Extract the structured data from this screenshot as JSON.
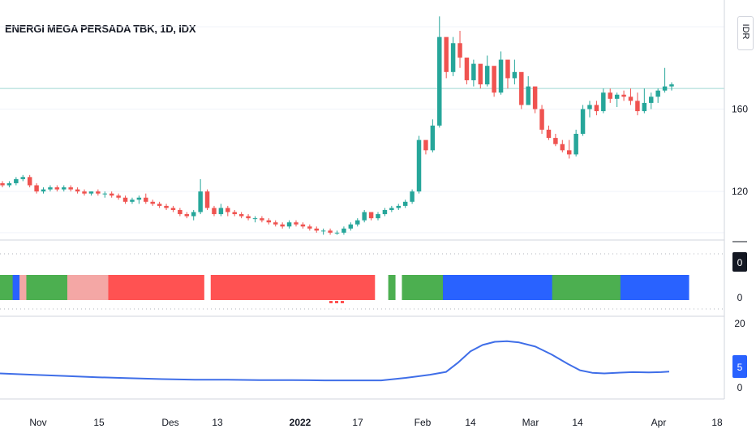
{
  "title": "ENERGI MEGA PERSADA TBK, 1D, IDX",
  "currency": "IDR",
  "colors": {
    "up": "#26a69a",
    "down": "#ef5350",
    "green_band": "#4caf50",
    "blue_band": "#2962ff",
    "red_band": "#ff5252",
    "pink_band": "#f4a7a5",
    "line": "#3f6ee8",
    "hline": "#b2dfdb"
  },
  "chart_data": [
    {
      "type": "candlestick",
      "title": "ENERGI MEGA PERSADA TBK, 1D, IDX",
      "y_ticks": [
        120,
        160
      ],
      "ylim": [
        98,
        211
      ],
      "horizontal_line": 170,
      "candles_ohlc": [
        [
          124,
          125,
          122,
          123
        ],
        [
          123,
          125,
          122,
          124
        ],
        [
          124,
          127,
          123,
          126
        ],
        [
          126,
          128,
          125,
          127
        ],
        [
          127,
          128,
          122,
          123
        ],
        [
          123,
          124,
          119,
          120
        ],
        [
          120,
          122,
          119,
          121
        ],
        [
          121,
          123,
          120,
          122
        ],
        [
          122,
          123,
          120,
          121
        ],
        [
          121,
          123,
          120,
          122
        ],
        [
          122,
          123,
          120,
          121
        ],
        [
          121,
          122,
          119,
          120
        ],
        [
          120,
          121,
          118,
          119
        ],
        [
          119,
          120,
          118,
          120
        ],
        [
          120,
          121,
          118,
          119
        ],
        [
          119,
          120,
          117,
          119
        ],
        [
          119,
          120,
          117,
          118
        ],
        [
          118,
          119,
          116,
          117
        ],
        [
          117,
          118,
          114,
          115
        ],
        [
          115,
          117,
          114,
          116
        ],
        [
          116,
          118,
          114,
          117
        ],
        [
          117,
          119,
          114,
          115
        ],
        [
          115,
          116,
          113,
          114
        ],
        [
          114,
          115,
          112,
          113
        ],
        [
          113,
          114,
          111,
          112
        ],
        [
          112,
          113,
          110,
          111
        ],
        [
          111,
          112,
          108,
          109
        ],
        [
          109,
          110,
          107,
          108
        ],
        [
          108,
          111,
          106,
          110
        ],
        [
          110,
          126,
          109,
          120
        ],
        [
          120,
          121,
          111,
          112
        ],
        [
          112,
          113,
          108,
          109
        ],
        [
          109,
          114,
          108,
          112
        ],
        [
          112,
          113,
          108,
          110
        ],
        [
          110,
          111,
          108,
          109
        ],
        [
          109,
          110,
          107,
          108
        ],
        [
          108,
          109,
          106,
          107
        ],
        [
          107,
          108,
          105,
          107
        ],
        [
          107,
          108,
          105,
          106
        ],
        [
          106,
          107,
          104,
          105
        ],
        [
          105,
          106,
          103,
          104
        ],
        [
          104,
          105,
          102,
          103
        ],
        [
          103,
          106,
          102,
          105
        ],
        [
          105,
          106,
          103,
          104
        ],
        [
          104,
          105,
          102,
          103
        ],
        [
          103,
          104,
          101,
          102
        ],
        [
          102,
          103,
          100,
          101
        ],
        [
          101,
          102,
          99,
          101
        ],
        [
          101,
          102,
          99,
          100
        ],
        [
          100,
          101,
          99,
          100
        ],
        [
          100,
          103,
          99,
          102
        ],
        [
          102,
          105,
          101,
          104
        ],
        [
          104,
          107,
          103,
          106
        ],
        [
          106,
          111,
          105,
          110
        ],
        [
          110,
          109,
          106,
          107
        ],
        [
          107,
          110,
          106,
          109
        ],
        [
          109,
          112,
          108,
          111
        ],
        [
          111,
          113,
          110,
          112
        ],
        [
          112,
          114,
          111,
          113
        ],
        [
          113,
          116,
          112,
          115
        ],
        [
          115,
          121,
          114,
          120
        ],
        [
          120,
          147,
          119,
          145
        ],
        [
          145,
          142,
          138,
          140
        ],
        [
          140,
          155,
          139,
          152
        ],
        [
          152,
          205,
          151,
          195
        ],
        [
          195,
          190,
          175,
          178
        ],
        [
          178,
          195,
          176,
          192
        ],
        [
          192,
          198,
          180,
          185
        ],
        [
          185,
          180,
          172,
          174
        ],
        [
          174,
          184,
          171,
          182
        ],
        [
          182,
          180,
          170,
          172
        ],
        [
          172,
          186,
          171,
          181
        ],
        [
          181,
          179,
          166,
          168
        ],
        [
          168,
          188,
          167,
          184
        ],
        [
          184,
          178,
          170,
          175
        ],
        [
          175,
          184,
          172,
          178
        ],
        [
          178,
          171,
          160,
          162
        ],
        [
          162,
          176,
          162,
          171
        ],
        [
          171,
          168,
          158,
          160
        ],
        [
          160,
          162,
          148,
          150
        ],
        [
          150,
          152,
          145,
          146
        ],
        [
          146,
          148,
          142,
          143
        ],
        [
          143,
          145,
          139,
          140
        ],
        [
          140,
          145,
          136,
          138
        ],
        [
          138,
          150,
          137,
          148
        ],
        [
          148,
          162,
          147,
          160
        ],
        [
          160,
          164,
          156,
          162
        ],
        [
          162,
          164,
          157,
          159
        ],
        [
          159,
          170,
          158,
          168
        ],
        [
          168,
          170,
          163,
          165
        ],
        [
          165,
          168,
          161,
          167
        ],
        [
          167,
          169,
          164,
          166
        ],
        [
          166,
          170,
          162,
          164
        ],
        [
          164,
          168,
          157,
          159
        ],
        [
          159,
          170,
          158,
          163
        ],
        [
          163,
          168,
          160,
          166
        ],
        [
          166,
          170,
          163,
          169
        ],
        [
          169,
          180,
          168,
          171
        ],
        [
          171,
          173,
          169,
          172
        ]
      ]
    },
    {
      "type": "heatmap",
      "y_ticks": [
        "0",
        "0"
      ],
      "segments": [
        {
          "color": "green",
          "count": 2
        },
        {
          "color": "blue",
          "count": 1
        },
        {
          "color": "pink",
          "count": 1
        },
        {
          "color": "green",
          "count": 6
        },
        {
          "color": "pink",
          "count": 6
        },
        {
          "color": "red",
          "count": 14
        },
        {
          "color": "none",
          "count": 1
        },
        {
          "color": "red",
          "count": 24
        },
        {
          "color": "none",
          "count": 2
        },
        {
          "color": "green",
          "count": 1
        },
        {
          "color": "none",
          "count": 1
        },
        {
          "color": "green",
          "count": 6
        },
        {
          "color": "blue",
          "count": 16
        },
        {
          "color": "green",
          "count": 10
        },
        {
          "color": "blue",
          "count": 10
        }
      ]
    },
    {
      "type": "line",
      "y_ticks": [
        "20",
        "0"
      ],
      "ylim": [
        0,
        20
      ],
      "last_value_label": "5",
      "x_points": [
        0,
        40,
        80,
        120,
        160,
        200,
        240,
        280,
        320,
        360,
        400,
        440,
        470,
        500,
        530,
        550,
        565,
        580,
        595,
        610,
        625,
        640,
        660,
        680,
        700,
        715,
        730,
        745,
        760,
        780,
        800,
        815,
        825
      ],
      "y_values": [
        5,
        4.6,
        4.2,
        3.8,
        3.5,
        3.2,
        3.0,
        3.0,
        2.9,
        2.9,
        2.8,
        2.8,
        2.8,
        3.6,
        4.6,
        5.5,
        8.5,
        12,
        14,
        15,
        15.2,
        14.8,
        13.5,
        11,
        8,
        6,
        5.2,
        5.0,
        5.2,
        5.4,
        5.3,
        5.4,
        5.6
      ]
    }
  ],
  "x_axis": {
    "labels": [
      "Nov",
      "15",
      "Des",
      "13",
      "2022",
      "17",
      "Feb",
      "14",
      "Mar",
      "14",
      "Apr",
      "18"
    ],
    "positions": [
      47,
      122,
      210,
      268,
      370,
      441,
      521,
      580,
      654,
      712,
      812,
      884
    ],
    "bold_index": 4
  }
}
